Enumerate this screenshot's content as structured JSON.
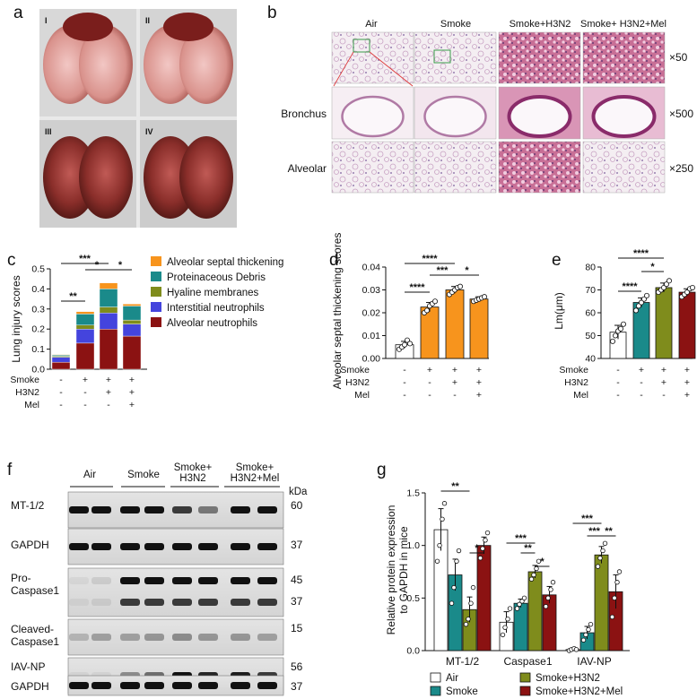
{
  "panel_a": {
    "letter": "a",
    "quadrants": [
      "I",
      "II",
      "III",
      "IV"
    ]
  },
  "panel_b": {
    "letter": "b",
    "columns": [
      "Air",
      "Smoke",
      "Smoke+H3N2",
      "Smoke+ H3N2+Mel"
    ],
    "rows": [
      "",
      "Bronchus",
      "Alveolar"
    ],
    "magnifications": [
      "×50",
      "×500",
      "×250"
    ]
  },
  "panel_f": {
    "letter": "f",
    "groups": [
      "Air",
      "Smoke",
      "Smoke+ H3N2",
      "Smoke+ H3N2+Mel"
    ],
    "kda_label": "kDa",
    "blots": [
      {
        "label": "MT-1/2",
        "kda": "60"
      },
      {
        "label": "GAPDH",
        "kda": "37"
      },
      {
        "label": "Pro- Caspase1",
        "kda": "45 37"
      },
      {
        "label": "Cleaved- Caspase1",
        "kda": "15"
      },
      {
        "label": "IAV-NP",
        "kda": "56"
      },
      {
        "label": "GAPDH",
        "kda": "37"
      }
    ]
  },
  "colors": {
    "air": "#ffffff",
    "smoke": "#1a8a8a",
    "smoke_h3n2": "#7f8c1c",
    "smoke_h3n2_mel": "#8b1212",
    "orange": "#f7941d",
    "teal": "#1a8a8a",
    "olive": "#7f8c1c",
    "blue": "#4444dd",
    "darkred": "#8b1212"
  },
  "chart_data": [
    {
      "id": "c",
      "type": "bar",
      "stacked": true,
      "letter": "c",
      "ylabel": "Lung injury scores",
      "ylim": [
        0,
        0.5
      ],
      "yticks": [
        "0.0",
        "0.1",
        "0.2",
        "0.3",
        "0.4",
        "0.5"
      ],
      "condition_rows": [
        {
          "name": "Smoke",
          "marks": [
            "-",
            "+",
            "+",
            "+"
          ]
        },
        {
          "name": "H3N2",
          "marks": [
            "-",
            "-",
            "+",
            "+"
          ]
        },
        {
          "name": "Mel",
          "marks": [
            "-",
            "-",
            "-",
            "+"
          ]
        }
      ],
      "series": [
        {
          "name": "Alveolar neutrophils",
          "values": [
            0.035,
            0.13,
            0.2,
            0.165
          ]
        },
        {
          "name": "Interstitial neutrophils",
          "values": [
            0.025,
            0.07,
            0.08,
            0.06
          ]
        },
        {
          "name": "Hyaline membranes",
          "values": [
            0.005,
            0.02,
            0.03,
            0.02
          ]
        },
        {
          "name": "Proteinaceous Debris",
          "values": [
            0.005,
            0.055,
            0.09,
            0.07
          ]
        },
        {
          "name": "Alveolar septal thickening",
          "values": [
            0.003,
            0.012,
            0.03,
            0.01
          ]
        }
      ],
      "legend": [
        "Alveolar septal thickening",
        "Proteinaceous Debris",
        "Hyaline membranes",
        "Interstitial neutrophils",
        "Alveolar neutrophils"
      ],
      "significance": [
        {
          "label": "***",
          "from": 0,
          "to": 2
        },
        {
          "label": "**",
          "from": 0,
          "to": 1
        },
        {
          "label": "*",
          "from": 1,
          "to": 2
        },
        {
          "label": "*",
          "from": 2,
          "to": 3
        }
      ]
    },
    {
      "id": "d",
      "type": "bar",
      "letter": "d",
      "ylabel": "Alveolar septal thickening scores",
      "ylim": [
        0,
        0.04
      ],
      "yticks": [
        "0.00",
        "0.01",
        "0.02",
        "0.03",
        "0.04"
      ],
      "condition_rows": [
        {
          "name": "Smoke",
          "marks": [
            "-",
            "+",
            "+",
            "+"
          ]
        },
        {
          "name": "H3N2",
          "marks": [
            "-",
            "-",
            "+",
            "+"
          ]
        },
        {
          "name": "Mel",
          "marks": [
            "-",
            "-",
            "-",
            "+"
          ]
        }
      ],
      "values": [
        0.006,
        0.0225,
        0.03,
        0.026
      ],
      "errors": [
        0.0015,
        0.002,
        0.0015,
        0.001
      ],
      "points": [
        [
          0.004,
          0.005,
          0.006,
          0.008,
          0.0065
        ],
        [
          0.02,
          0.021,
          0.023,
          0.024,
          0.025
        ],
        [
          0.028,
          0.029,
          0.03,
          0.031,
          0.0315
        ],
        [
          0.025,
          0.0255,
          0.026,
          0.0265,
          0.027
        ]
      ],
      "significance": [
        {
          "label": "****",
          "from": 0,
          "to": 2
        },
        {
          "label": "***",
          "from": 1,
          "to": 2
        },
        {
          "label": "****",
          "from": 0,
          "to": 1
        },
        {
          "label": "*",
          "from": 2,
          "to": 3
        }
      ]
    },
    {
      "id": "e",
      "type": "bar",
      "letter": "e",
      "ylabel": "Lm(μm)",
      "ylim": [
        40,
        80
      ],
      "yticks": [
        "40",
        "50",
        "60",
        "70",
        "80"
      ],
      "condition_rows": [
        {
          "name": "Smoke",
          "marks": [
            "-",
            "+",
            "+",
            "+"
          ]
        },
        {
          "name": "H3N2",
          "marks": [
            "-",
            "-",
            "+",
            "+"
          ]
        },
        {
          "name": "Mel",
          "marks": [
            "-",
            "-",
            "-",
            "+"
          ]
        }
      ],
      "values": [
        51.5,
        64.5,
        71,
        69
      ],
      "errors": [
        3,
        2,
        2,
        1.5
      ],
      "points": [
        [
          47.5,
          50,
          52,
          53,
          55
        ],
        [
          61,
          63,
          64.5,
          66,
          67.5
        ],
        [
          69,
          70,
          71,
          72.5,
          74
        ],
        [
          67,
          68,
          69,
          70.5,
          71
        ]
      ],
      "significance": [
        {
          "label": "****",
          "from": 0,
          "to": 2
        },
        {
          "label": "*",
          "from": 1,
          "to": 2
        },
        {
          "label": "****",
          "from": 0,
          "to": 1
        }
      ]
    },
    {
      "id": "g",
      "type": "bar",
      "letter": "g",
      "ylabel": "Relative protein expression to GAPDH in mice",
      "ylim": [
        0,
        1.5
      ],
      "yticks": [
        "0.0",
        "0.5",
        "1.0",
        "1.5"
      ],
      "categories": [
        "MT-1/2",
        "Caspase1",
        "IAV-NP"
      ],
      "series": [
        {
          "name": "Air",
          "values": [
            1.15,
            0.27,
            0.01
          ],
          "errors": [
            0.2,
            0.1,
            0.01
          ],
          "points": [
            [
              0.85,
              1.0,
              1.25,
              1.4
            ],
            [
              0.15,
              0.22,
              0.3,
              0.4
            ],
            [
              0.0,
              0.01,
              0.02,
              0.01
            ]
          ]
        },
        {
          "name": "Smoke",
          "values": [
            0.72,
            0.45,
            0.17
          ],
          "errors": [
            0.15,
            0.04,
            0.06
          ],
          "points": [
            [
              0.45,
              0.6,
              0.85,
              0.95
            ],
            [
              0.4,
              0.44,
              0.47,
              0.5
            ],
            [
              0.1,
              0.15,
              0.2,
              0.25
            ]
          ]
        },
        {
          "name": "Smoke+H3N2",
          "values": [
            0.39,
            0.75,
            0.91
          ],
          "errors": [
            0.12,
            0.06,
            0.08
          ],
          "points": [
            [
              0.25,
              0.3,
              0.45,
              0.6
            ],
            [
              0.68,
              0.72,
              0.78,
              0.85
            ],
            [
              0.8,
              0.88,
              0.95,
              1.02
            ]
          ]
        },
        {
          "name": "Smoke+H3N2+Mel",
          "values": [
            1.0,
            0.53,
            0.56
          ],
          "errors": [
            0.08,
            0.08,
            0.16
          ],
          "points": [
            [
              0.88,
              0.97,
              1.05,
              1.12
            ],
            [
              0.42,
              0.5,
              0.58,
              0.65
            ],
            [
              0.32,
              0.5,
              0.65,
              0.75
            ]
          ]
        }
      ],
      "significance": [
        {
          "label": "**",
          "cat": 0,
          "from": 0,
          "to": 2
        },
        {
          "label": "*",
          "cat": 0,
          "from": 2,
          "to": 3
        },
        {
          "label": "***",
          "cat": 1,
          "from": 0,
          "to": 2
        },
        {
          "label": "**",
          "cat": 1,
          "from": 1,
          "to": 2
        },
        {
          "label": "*",
          "cat": 1,
          "from": 2,
          "to": 3
        },
        {
          "label": "***",
          "cat": 2,
          "from": 0,
          "to": 2
        },
        {
          "label": "***",
          "cat": 2,
          "from": 1,
          "to": 2
        },
        {
          "label": "**",
          "cat": 2,
          "from": 2,
          "to": 3
        }
      ]
    }
  ]
}
